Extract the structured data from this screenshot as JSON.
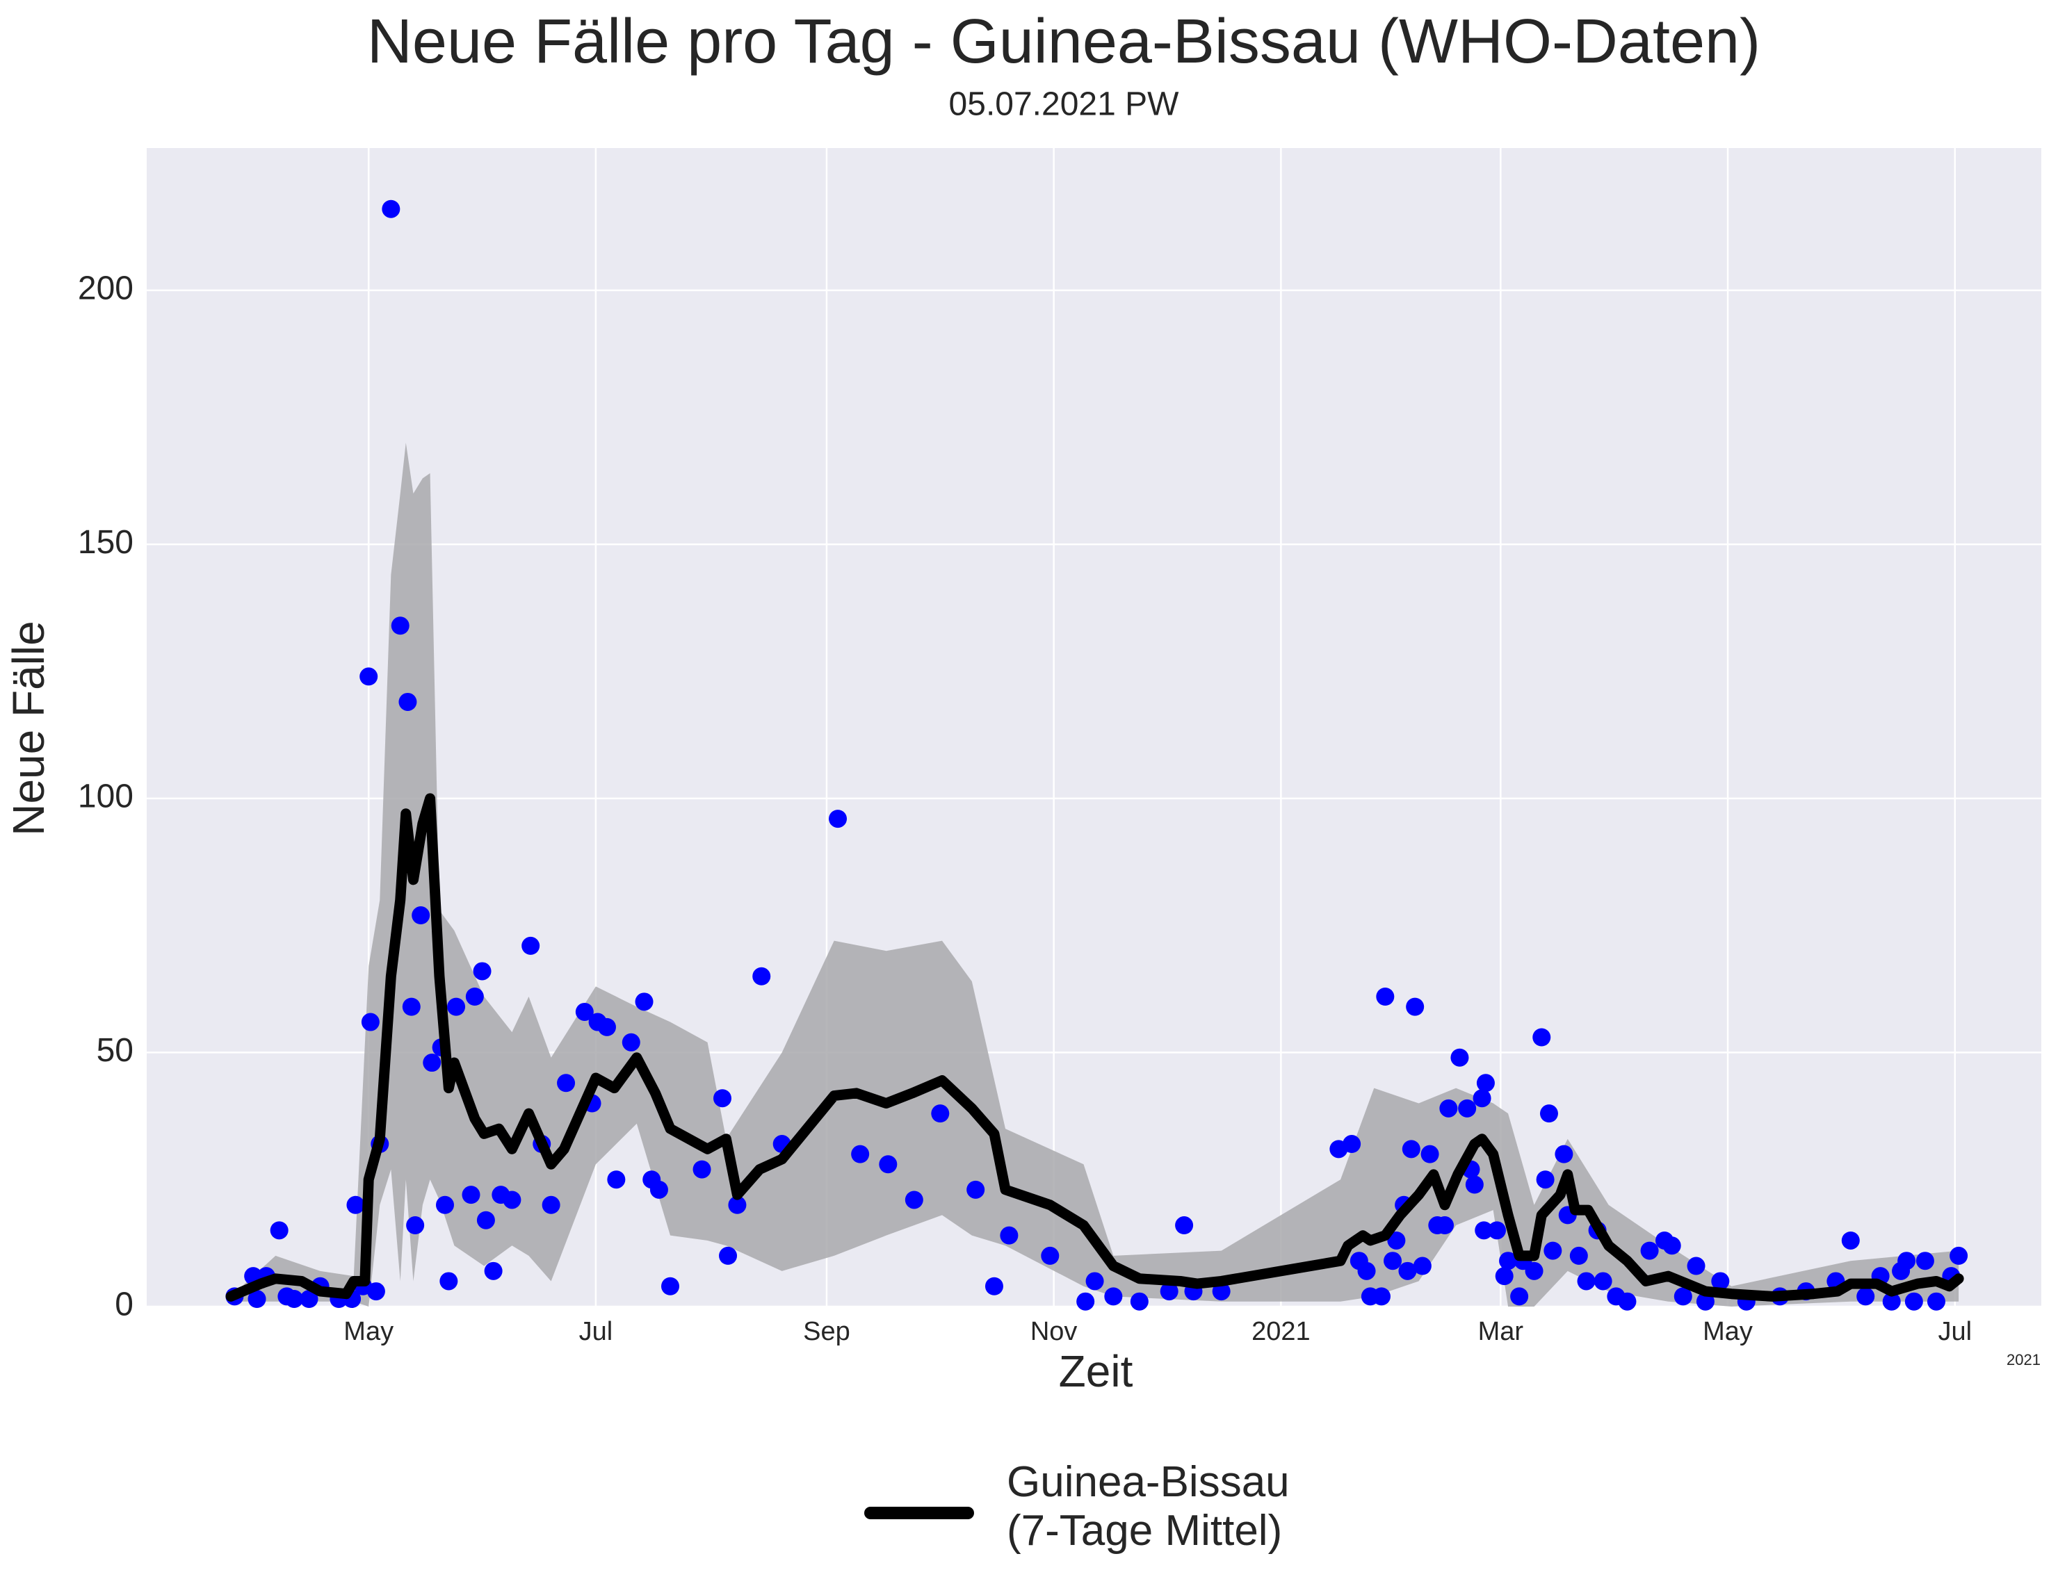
{
  "chart_data": {
    "type": "line",
    "title": "Neue Fälle pro Tag - Guinea-Bissau (WHO-Daten)",
    "subtitle": "05.07.2021 PW",
    "xlabel": "Zeit",
    "ylabel": "Neue Fälle",
    "x_offset_label": "2021",
    "background": "#eaeaf2",
    "grid": true,
    "xlim": [
      -59.6,
      449.2
    ],
    "xticks": [
      {
        "value": 0,
        "label": "May"
      },
      {
        "value": 61,
        "label": "Jul"
      },
      {
        "value": 123,
        "label": "Sep"
      },
      {
        "value": 184,
        "label": "Nov"
      },
      {
        "value": 245,
        "label": "2021"
      },
      {
        "value": 304,
        "label": "Mar"
      },
      {
        "value": 365,
        "label": "May"
      },
      {
        "value": 426,
        "label": "Jul"
      }
    ],
    "ylim": [
      0,
      228
    ],
    "yticks": [
      0,
      50,
      100,
      150,
      200
    ],
    "legend": "bottom",
    "series": [
      {
        "name": "Guinea-Bissau\n(7-Tage Mittel)",
        "color": "#000000",
        "x": [
          -37,
          -29,
          -25,
          -18,
          -13,
          -6,
          -4,
          -1,
          0,
          3,
          6,
          8.5,
          10,
          12,
          14.5,
          16.5,
          19,
          21.5,
          23,
          28.5,
          31,
          35,
          38.5,
          43,
          49,
          52.5,
          61,
          66,
          72,
          77,
          81,
          91,
          96,
          99,
          105,
          111,
          125,
          131,
          139,
          146,
          154,
          162,
          168,
          171,
          183,
          192,
          200,
          207,
          218,
          222.5,
          229,
          261,
          263,
          267,
          269,
          273,
          277,
          282,
          286,
          289,
          292.5,
          297,
          299,
          302,
          306,
          309,
          313,
          315,
          320,
          322,
          324,
          327.5,
          333,
          338,
          343,
          349,
          354,
          359,
          366,
          377,
          388,
          394.5,
          398,
          405,
          409,
          416,
          421,
          424.5,
          427
        ],
        "values": [
          2,
          4.5,
          5.5,
          5,
          3,
          2.5,
          5,
          5,
          25,
          33,
          65,
          80,
          97,
          84,
          95,
          100,
          65,
          43,
          48,
          37,
          34,
          35,
          31,
          38,
          28,
          31,
          45,
          43,
          49,
          42,
          35,
          31,
          33,
          22,
          27,
          29,
          41.5,
          42,
          40,
          42,
          44.5,
          39,
          34,
          23,
          20,
          16,
          8,
          5.5,
          5,
          4.5,
          5,
          9,
          12,
          14,
          13,
          14,
          18,
          22,
          26,
          20,
          26,
          32,
          33,
          30,
          18,
          10,
          10,
          18,
          22,
          26,
          19,
          19,
          12,
          9,
          5,
          6,
          4.5,
          3,
          2.5,
          2,
          2.5,
          3,
          4.5,
          4.5,
          3,
          4.5,
          5,
          4,
          5.5
        ]
      }
    ],
    "band": {
      "color": "#a9a9ad",
      "x": [
        -37,
        -25,
        -13,
        -4,
        0,
        3,
        6,
        8.5,
        10,
        12,
        14.5,
        16.5,
        19,
        23,
        31,
        38.5,
        43,
        49,
        61,
        72,
        81,
        91,
        96,
        111,
        125,
        139,
        154,
        162,
        171,
        192,
        200,
        229,
        261,
        270,
        282,
        292,
        302,
        306,
        313,
        322,
        333,
        349,
        366,
        398,
        427
      ],
      "upper": [
        2,
        10,
        7,
        6,
        67,
        80,
        144,
        160,
        170,
        160,
        163,
        164,
        78,
        74,
        61,
        54,
        61,
        49,
        63,
        59,
        56,
        52,
        33,
        50,
        72,
        70,
        72,
        64,
        35,
        28,
        10,
        11,
        25,
        43,
        40,
        43,
        40,
        38,
        20,
        33,
        20,
        12,
        4,
        9,
        11
      ],
      "lower": [
        1,
        1,
        1,
        1,
        0,
        20,
        27,
        5,
        25,
        5,
        20,
        25,
        21,
        12,
        8,
        12,
        10,
        5,
        28,
        36,
        14,
        13,
        12,
        7,
        10,
        14,
        18,
        14,
        12,
        4,
        2,
        1,
        1,
        2,
        5,
        16,
        19,
        0,
        0,
        7,
        3,
        1,
        0,
        1,
        1
      ]
    },
    "scatter": {
      "color": "#0000ff",
      "x": [
        -36,
        -31,
        -30,
        -27.5,
        -24,
        -22,
        -20,
        -16,
        -13,
        -8,
        -4.5,
        -3.5,
        -1.5,
        0,
        0.5,
        2,
        3,
        6,
        8.5,
        10.5,
        11.5,
        12.5,
        14,
        17,
        19.5,
        20.5,
        21.5,
        23.5,
        27.5,
        28.5,
        30.5,
        31.5,
        33.5,
        35.5,
        38.5,
        43.5,
        46.5,
        49,
        53,
        58,
        60,
        61.5,
        64,
        66.5,
        70.5,
        74,
        76,
        78,
        81,
        89.5,
        95,
        96.5,
        99,
        105.5,
        111,
        126,
        132,
        139.5,
        146.5,
        153.5,
        163,
        168,
        172,
        183,
        192.5,
        195,
        200,
        207,
        215,
        219,
        221.5,
        229,
        260.5,
        264,
        266,
        268,
        269,
        272,
        273,
        275,
        276,
        278,
        279,
        280,
        281,
        283,
        285,
        287,
        289,
        290,
        293,
        295,
        296,
        297,
        299,
        300,
        299.5,
        303,
        305,
        306,
        309,
        310,
        313,
        315,
        316,
        317,
        318,
        321,
        322,
        325,
        327,
        330,
        331.5,
        335,
        338,
        344,
        348,
        350,
        353,
        356.5,
        359,
        363,
        370,
        379,
        386,
        394,
        398,
        402,
        406,
        409,
        411.5,
        413,
        415,
        418,
        421,
        425,
        427
      ],
      "values": [
        2,
        6,
        1.5,
        6,
        15,
        2,
        1.5,
        1.5,
        4,
        1.5,
        1.5,
        20,
        4,
        124,
        56,
        3,
        32,
        216,
        134,
        119,
        59,
        16,
        77,
        48,
        51,
        20,
        5,
        59,
        22,
        61,
        66,
        17,
        7,
        22,
        21,
        71,
        32,
        20,
        44,
        58,
        40,
        56,
        55,
        25,
        52,
        60,
        25,
        23,
        4,
        27,
        41,
        10,
        20,
        65,
        32,
        96,
        30,
        28,
        21,
        38,
        23,
        4,
        14,
        10,
        1,
        5,
        2,
        1,
        3,
        16,
        3,
        3,
        31,
        32,
        9,
        7,
        2,
        2,
        61,
        9,
        13,
        20,
        7,
        31,
        59,
        8,
        30,
        16,
        16,
        39,
        49,
        39,
        27,
        24,
        41,
        44,
        15,
        15,
        6,
        9,
        2,
        9,
        7,
        53,
        25,
        38,
        11,
        30,
        18,
        10,
        5,
        15,
        5,
        2,
        1,
        11,
        13,
        12,
        2,
        8,
        1,
        5,
        1,
        2,
        3,
        5,
        13,
        2,
        6,
        1,
        7,
        9,
        1,
        9,
        1,
        6,
        10
      ]
    }
  }
}
